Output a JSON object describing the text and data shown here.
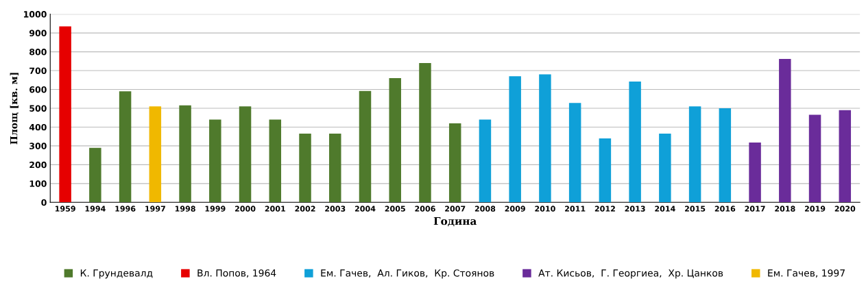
{
  "chart_data": {
    "type": "bar",
    "xlabel": "Година",
    "ylabel": "Площ [кв. м]",
    "categories": [
      "1959",
      "1994",
      "1996",
      "1997",
      "1998",
      "1999",
      "2000",
      "2001",
      "2002",
      "2003",
      "2004",
      "2005",
      "2006",
      "2007",
      "2008",
      "2009",
      "2010",
      "2011",
      "2012",
      "2013",
      "2014",
      "2015",
      "2016",
      "2017",
      "2018",
      "2019",
      "2020"
    ],
    "series": [
      {
        "name": "К. Грундевалд",
        "color": "#4f7a2c",
        "values": [
          null,
          290,
          590,
          null,
          515,
          440,
          510,
          440,
          365,
          365,
          592,
          660,
          740,
          420,
          null,
          null,
          null,
          null,
          null,
          null,
          null,
          null,
          null,
          null,
          null,
          null,
          null
        ]
      },
      {
        "name": "Вл. Попов, 1964",
        "color": "#e60000",
        "values": [
          935,
          null,
          null,
          null,
          null,
          null,
          null,
          null,
          null,
          null,
          null,
          null,
          null,
          null,
          null,
          null,
          null,
          null,
          null,
          null,
          null,
          null,
          null,
          null,
          null,
          null,
          null
        ]
      },
      {
        "name": "Ем. Гачев,  Ал. Гиков,  Кр. Стоянов",
        "color": "#0fa0d8",
        "values": [
          null,
          null,
          null,
          null,
          null,
          null,
          null,
          null,
          null,
          null,
          null,
          null,
          null,
          null,
          440,
          670,
          680,
          528,
          340,
          642,
          365,
          510,
          500,
          null,
          null,
          null,
          null
        ]
      },
      {
        "name": "Ат. Кисьов,  Г. Георгиеа,  Хр. Цанков",
        "color": "#6a2c9a",
        "values": [
          null,
          null,
          null,
          null,
          null,
          null,
          null,
          null,
          null,
          null,
          null,
          null,
          null,
          null,
          null,
          null,
          null,
          null,
          null,
          null,
          null,
          null,
          null,
          318,
          762,
          465,
          490
        ]
      },
      {
        "name": "Ем. Гачев, 1997",
        "color": "#f0b800",
        "values": [
          null,
          null,
          null,
          510,
          null,
          null,
          null,
          null,
          null,
          null,
          null,
          null,
          null,
          null,
          null,
          null,
          null,
          null,
          null,
          null,
          null,
          null,
          null,
          null,
          null,
          null,
          null
        ]
      }
    ],
    "ylim": [
      0,
      1000
    ],
    "yticks": [
      0,
      100,
      200,
      300,
      400,
      500,
      600,
      700,
      800,
      900,
      1000
    ],
    "grid": "y",
    "legend": "bottom"
  }
}
